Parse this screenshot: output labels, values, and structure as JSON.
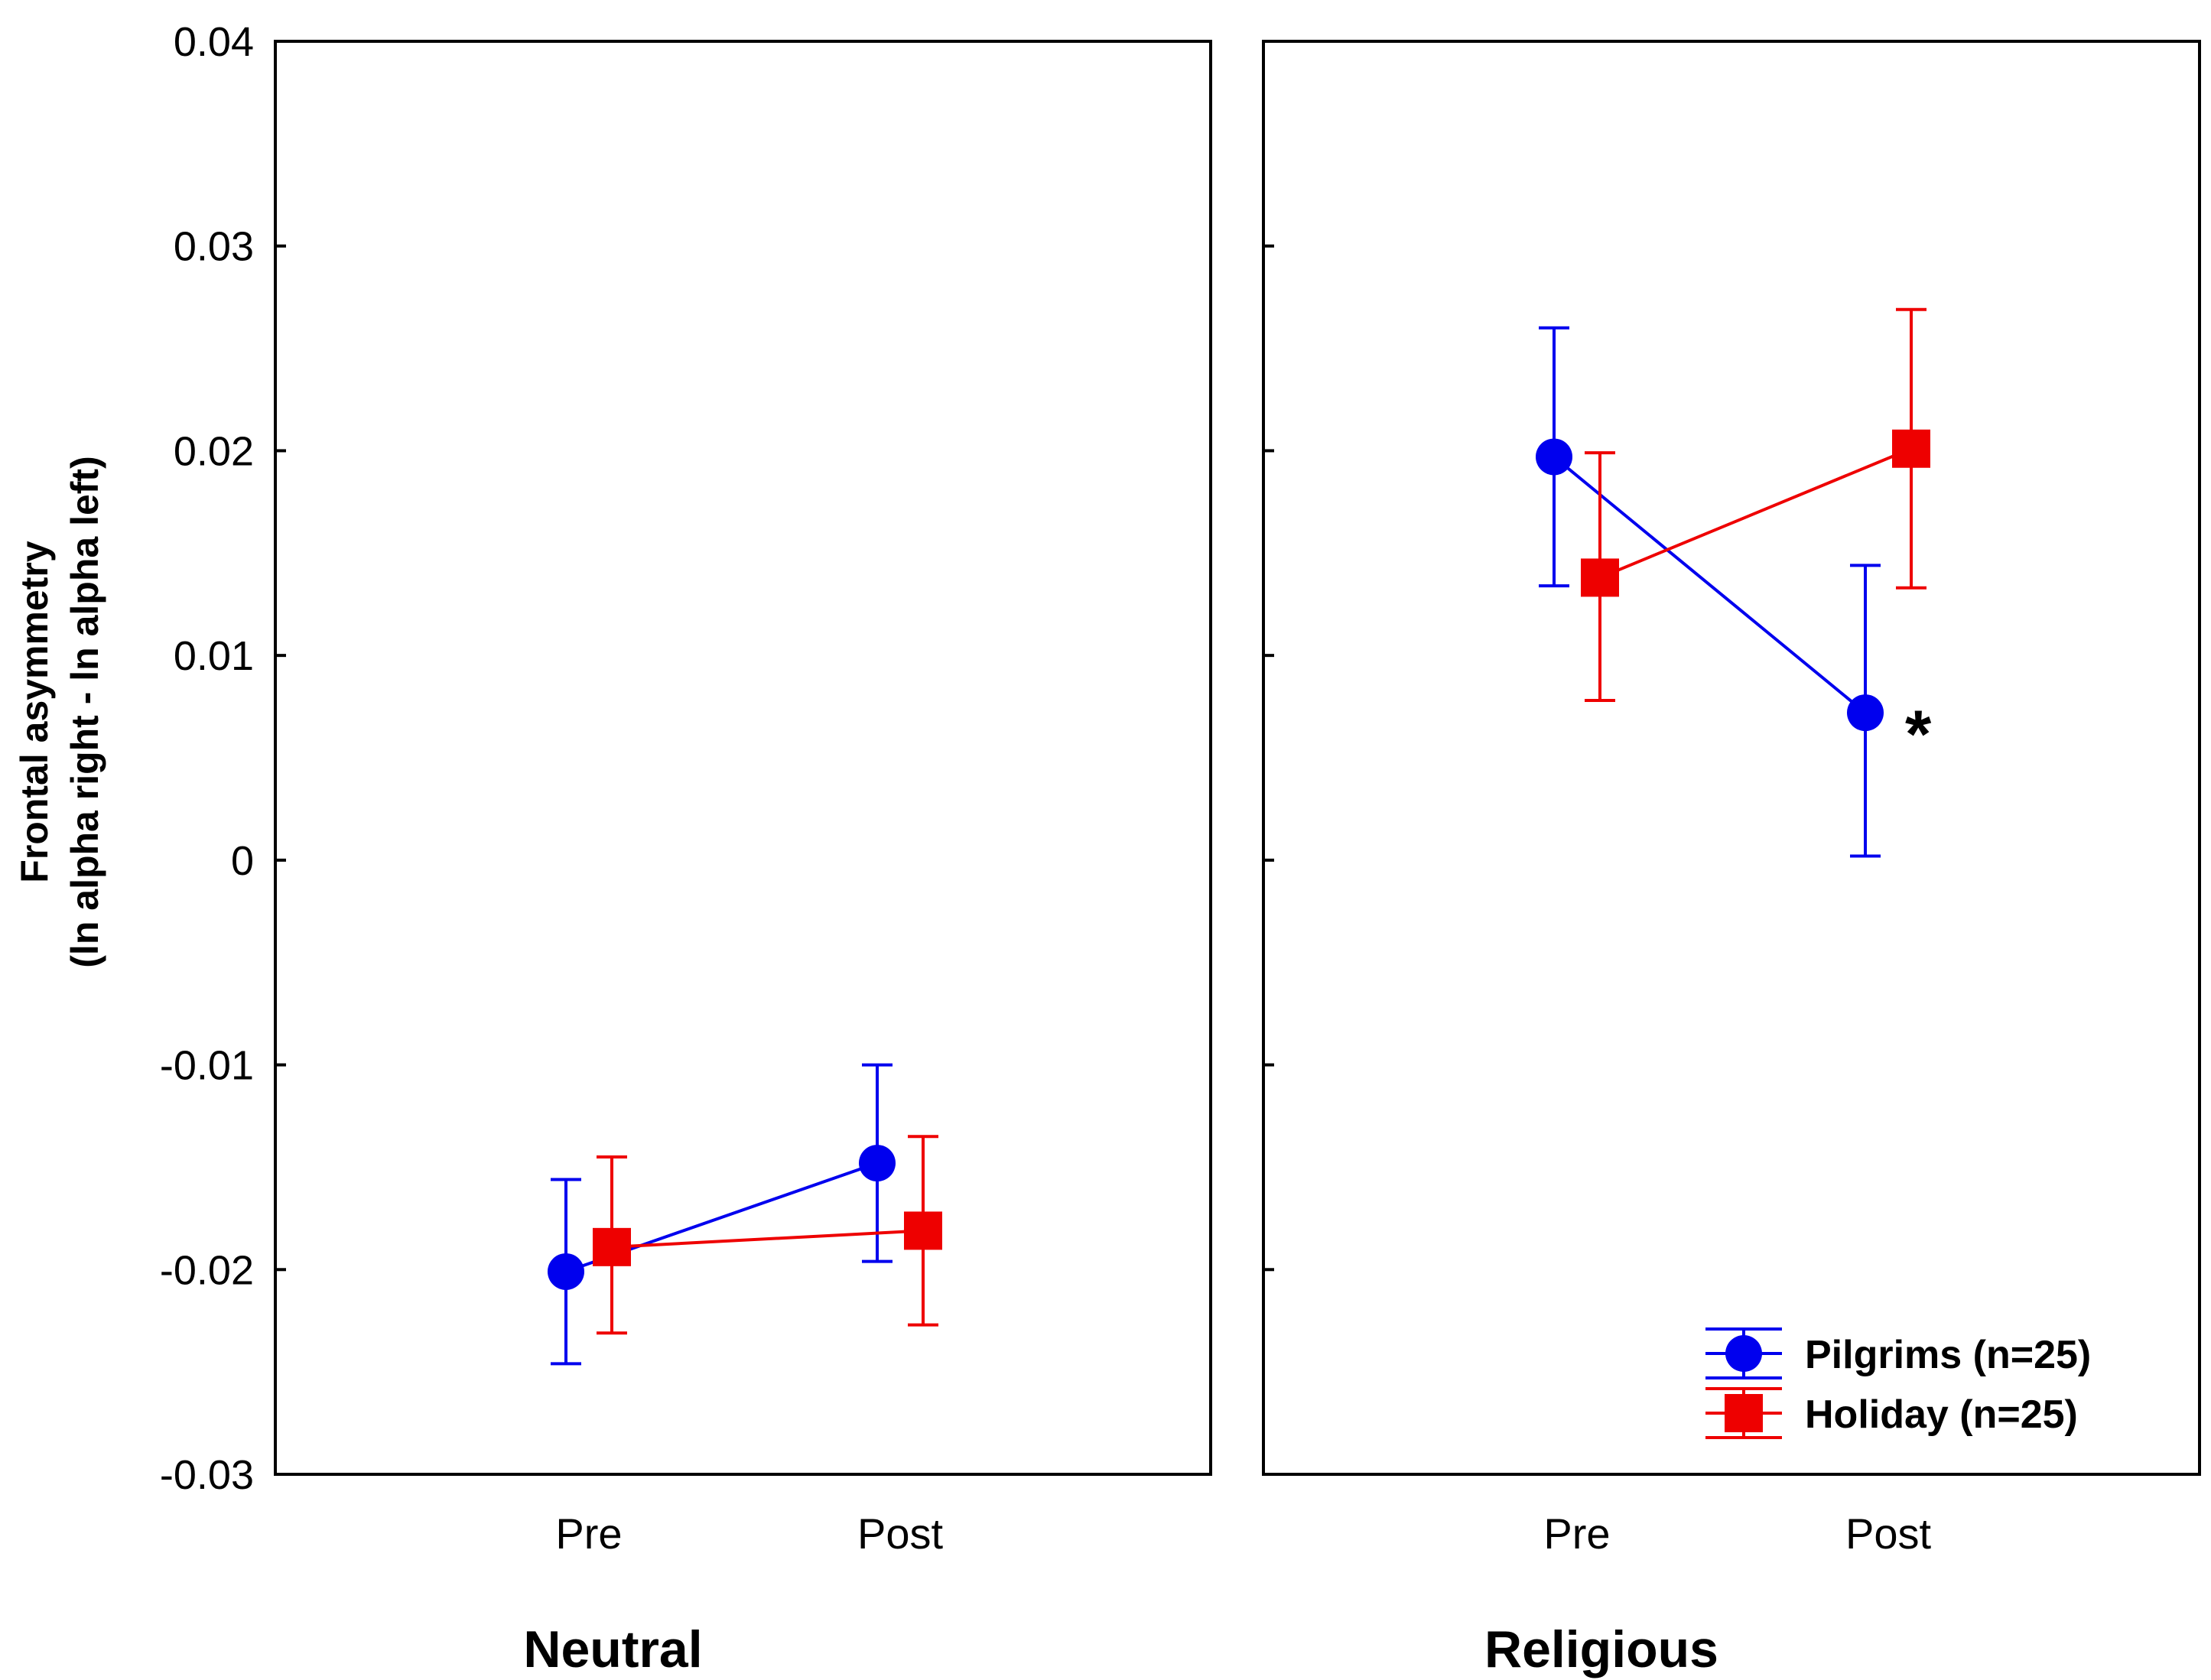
{
  "chart_data": {
    "type": "line",
    "ylabel_line1": "Frontal asymmetry",
    "ylabel_line2": "(ln alpha right - ln alpha left)",
    "ylim": [
      -0.03,
      0.04
    ],
    "yticks": [
      -0.03,
      -0.02,
      -0.01,
      0,
      0.01,
      0.02,
      0.03,
      0.04
    ],
    "ytick_labels": [
      "-0.03",
      "-0.02",
      "-0.01",
      "0",
      "0.01",
      "0.02",
      "0.03",
      "0.04"
    ],
    "categories": [
      "Pre",
      "Post"
    ],
    "panels": [
      {
        "title": "Neutral",
        "series": [
          {
            "name": "Pilgrims (n=25)",
            "marker": "circle",
            "color": "#0000ee",
            "values": [
              -0.0201,
              -0.0148
            ],
            "err_low": [
              -0.0246,
              -0.0196
            ],
            "err_high": [
              -0.0156,
              -0.01
            ]
          },
          {
            "name": "Holiday (n=25)",
            "marker": "square",
            "color": "#ee0000",
            "values": [
              -0.0189,
              -0.0181
            ],
            "err_low": [
              -0.0231,
              -0.0227
            ],
            "err_high": [
              -0.0145,
              -0.0135
            ]
          }
        ],
        "annotations": []
      },
      {
        "title": "Religious",
        "series": [
          {
            "name": "Pilgrims (n=25)",
            "marker": "circle",
            "color": "#0000ee",
            "values": [
              0.0197,
              0.0072
            ],
            "err_low": [
              0.0134,
              0.0002
            ],
            "err_high": [
              0.026,
              0.0144
            ]
          },
          {
            "name": "Holiday (n=25)",
            "marker": "square",
            "color": "#ee0000",
            "values": [
              0.0138,
              0.0201
            ],
            "err_low": [
              0.0078,
              0.0133
            ],
            "err_high": [
              0.0199,
              0.0269
            ]
          }
        ],
        "annotations": [
          {
            "text": "*",
            "series": 0,
            "category": 1
          }
        ]
      }
    ],
    "legend": {
      "position": "bottom-right of Religious panel",
      "entries": [
        {
          "label": "Pilgrims (n=25)",
          "marker": "circle",
          "color": "#0000ee"
        },
        {
          "label": "Holiday (n=25)",
          "marker": "square",
          "color": "#ee0000"
        }
      ]
    }
  }
}
